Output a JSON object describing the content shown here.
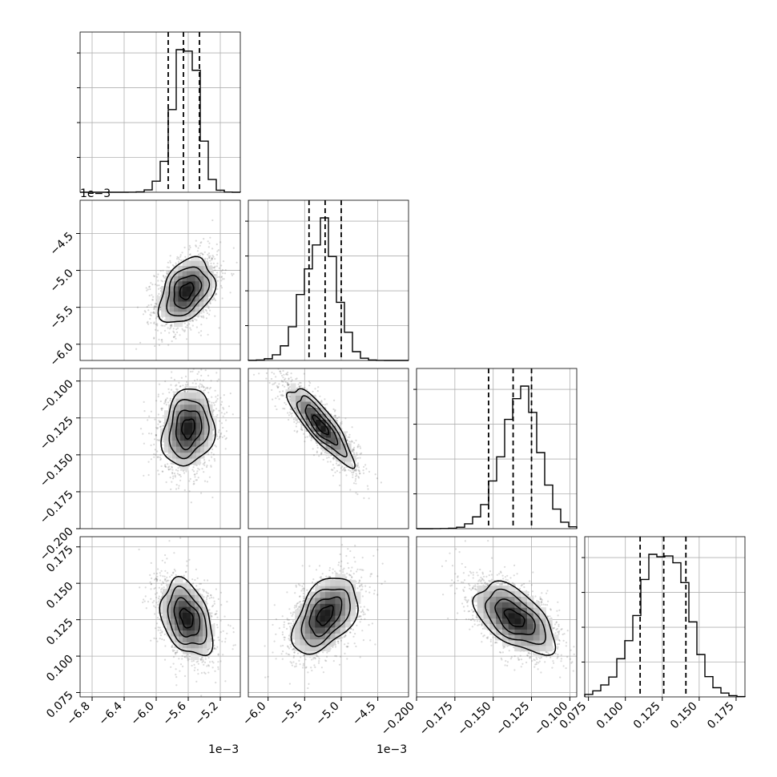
{
  "chart_data": {
    "type": "corner",
    "parameters": [
      {
        "range": [
          -6.95,
          -4.95
        ],
        "ticks": [
          -6.8,
          -6.4,
          -6.0,
          -5.6,
          -5.2
        ],
        "tick_labels": [
          "−6.8",
          "−6.4",
          "−6.0",
          "−5.6",
          "−5.2"
        ],
        "offset_label": "1e−3",
        "quantiles": [
          -5.85,
          -5.66,
          -5.46
        ],
        "mode": -5.6,
        "sd": 0.15,
        "show_y_ticks": true,
        "y_tick_labels": [
          "",
          "−6.0",
          "−5.5",
          "−5.0",
          "−4.5"
        ]
      },
      {
        "range": [
          -6.27,
          -4.08
        ],
        "ticks": [
          -6.0,
          -5.5,
          -5.0,
          -4.5
        ],
        "tick_labels": [
          "−6.0",
          "−5.5",
          "−5.0",
          "−4.5"
        ],
        "offset_label": "1e−3",
        "quantiles": [
          -5.44,
          -5.22,
          -5.0
        ],
        "mode": -5.25,
        "sd": 0.22,
        "show_y_ticks": true
      },
      {
        "range": [
          -0.2,
          -0.0955
        ],
        "ticks": [
          -0.2,
          -0.175,
          -0.15,
          -0.125,
          -0.1
        ],
        "tick_labels": [
          "−0.200",
          "−0.175",
          "−0.150",
          "−0.125",
          "−0.100"
        ],
        "offset_label": "",
        "quantiles": [
          -0.153,
          -0.137,
          -0.125
        ],
        "mode": -0.13,
        "sd": 0.012,
        "show_y_ticks": true
      },
      {
        "range": [
          0.0725,
          0.181
        ],
        "ticks": [
          0.075,
          0.1,
          0.125,
          0.15,
          0.175
        ],
        "tick_labels": [
          "0.075",
          "0.100",
          "0.125",
          "0.150",
          "0.175"
        ],
        "offset_label": "",
        "quantiles": [
          0.11,
          0.126,
          0.141
        ],
        "mode": 0.128,
        "sd": 0.016,
        "show_y_ticks": true
      }
    ],
    "y_tick_sets": {
      "1": {
        "ticks": [
          -6.0,
          -5.5,
          -5.0,
          -4.5
        ],
        "labels": [
          "−6.0",
          "−5.5",
          "−5.0",
          "−4.5"
        ],
        "offset_label": "1e−3",
        "range": [
          -6.22,
          -4.05
        ]
      },
      "2": {
        "ticks": [
          -0.2,
          -0.175,
          -0.15,
          -0.125,
          -0.1
        ],
        "labels": [
          "−0.200",
          "−0.175",
          "−0.150",
          "−0.125",
          "−0.100"
        ],
        "offset_label": "",
        "range": [
          -0.2,
          -0.0915
        ]
      },
      "3": {
        "ticks": [
          0.075,
          0.1,
          0.125,
          0.15,
          0.175
        ],
        "labels": [
          "0.075",
          "0.100",
          "0.125",
          "0.150",
          "0.175"
        ],
        "offset_label": "",
        "range": [
          0.072,
          0.182
        ]
      }
    },
    "centers": {
      "1-0": {
        "cx": -5.62,
        "cy": -5.28,
        "rho": 0.35,
        "sx": 0.17,
        "sy": 0.22
      },
      "2-0": {
        "cx": -5.6,
        "cy": -0.132,
        "rho": 0.15,
        "sx": 0.16,
        "sy": 0.013
      },
      "2-1": {
        "cx": -5.28,
        "cy": -0.13,
        "rho": -0.85,
        "sx": 0.22,
        "sy": 0.013
      },
      "3-0": {
        "cx": -5.62,
        "cy": 0.126,
        "rho": -0.35,
        "sx": 0.16,
        "sy": 0.013
      },
      "3-1": {
        "cx": -5.22,
        "cy": 0.128,
        "rho": 0.45,
        "sx": 0.22,
        "sy": 0.013
      },
      "3-2": {
        "cx": -0.136,
        "cy": 0.126,
        "rho": -0.55,
        "sx": 0.013,
        "sy": 0.012
      }
    },
    "grid": true
  }
}
